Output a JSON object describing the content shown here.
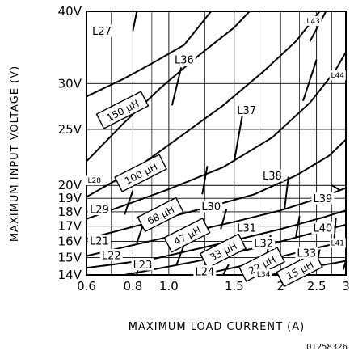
{
  "chart_data": {
    "type": "line",
    "xlabel": "MAXIMUM LOAD CURRENT (A)",
    "ylabel": "MAXIMUM INPUT VOLTAGE (V)",
    "xlim": [
      0.6,
      3
    ],
    "ylim": [
      14,
      40
    ],
    "x_scale": "log",
    "y_scale": "log",
    "grid": true,
    "x_ticks": [
      {
        "value": 0.6,
        "label": "0.6"
      },
      {
        "value": 0.8,
        "label": "0.8"
      },
      {
        "value": 1.0,
        "label": "1.0"
      },
      {
        "value": 1.5,
        "label": "1.5"
      },
      {
        "value": 2,
        "label": "2"
      },
      {
        "value": 2.5,
        "label": "2.5"
      },
      {
        "value": 3,
        "label": "3"
      }
    ],
    "y_ticks": [
      {
        "value": 14,
        "label": "14V"
      },
      {
        "value": 15,
        "label": "15V"
      },
      {
        "value": 16,
        "label": "16V"
      },
      {
        "value": 17,
        "label": "17V"
      },
      {
        "value": 18,
        "label": "18V"
      },
      {
        "value": 19,
        "label": "19V"
      },
      {
        "value": 20,
        "label": "20V"
      },
      {
        "value": 25,
        "label": "25V"
      },
      {
        "value": 30,
        "label": "30V"
      },
      {
        "value": 40,
        "label": "40V"
      }
    ],
    "inductance_labels": [
      {
        "label": "150 μH",
        "x": 0.75,
        "y": 27
      },
      {
        "label": "100 μH",
        "x": 0.84,
        "y": 21
      },
      {
        "label": "68 μH",
        "x": 0.95,
        "y": 17.8
      },
      {
        "label": "47 μH",
        "x": 1.12,
        "y": 16.4
      },
      {
        "label": "33 μH",
        "x": 1.4,
        "y": 15.4
      },
      {
        "label": "22 μH",
        "x": 1.78,
        "y": 14.6
      },
      {
        "label": "15 μH",
        "x": 2.25,
        "y": 14.3
      }
    ],
    "region_labels": [
      {
        "label": "L27",
        "x": 0.66,
        "y": 37
      },
      {
        "label": "L36",
        "x": 1.1,
        "y": 33
      },
      {
        "label": "L43",
        "x": 2.45,
        "y": 38.5,
        "small": true
      },
      {
        "label": "L44",
        "x": 2.85,
        "y": 31,
        "small": true
      },
      {
        "label": "L37",
        "x": 1.62,
        "y": 27
      },
      {
        "label": "L28",
        "x": 0.63,
        "y": 20.4,
        "small": true
      },
      {
        "label": "L38",
        "x": 1.9,
        "y": 20.8
      },
      {
        "label": "L39",
        "x": 2.6,
        "y": 19
      },
      {
        "label": "L29",
        "x": 0.65,
        "y": 18.2
      },
      {
        "label": "L30",
        "x": 1.3,
        "y": 18.4
      },
      {
        "label": "L31",
        "x": 1.62,
        "y": 16.9
      },
      {
        "label": "L40",
        "x": 2.6,
        "y": 16.9
      },
      {
        "label": "L21",
        "x": 0.65,
        "y": 16.05
      },
      {
        "label": "L32",
        "x": 1.8,
        "y": 15.9
      },
      {
        "label": "L41",
        "x": 2.85,
        "y": 15.9,
        "small": true
      },
      {
        "label": "L22",
        "x": 0.7,
        "y": 15.15
      },
      {
        "label": "L33",
        "x": 2.35,
        "y": 15.3
      },
      {
        "label": "L23",
        "x": 0.85,
        "y": 14.6
      },
      {
        "label": "L24",
        "x": 1.25,
        "y": 14.2
      },
      {
        "label": "L34",
        "x": 1.8,
        "y": 14.05,
        "small": true
      }
    ],
    "boundary_lines": [
      {
        "points": [
          [
            0.6,
            22
          ],
          [
            0.75,
            25.5
          ],
          [
            0.95,
            29.5
          ],
          [
            1.2,
            33.5
          ],
          [
            1.5,
            37.5
          ],
          [
            1.65,
            40
          ]
        ]
      },
      {
        "points": [
          [
            0.6,
            19.1
          ],
          [
            0.8,
            21.2
          ],
          [
            1.0,
            23.5
          ],
          [
            1.4,
            27.5
          ],
          [
            1.8,
            31.5
          ],
          [
            2.2,
            35.5
          ],
          [
            2.55,
            40
          ]
        ]
      },
      {
        "points": [
          [
            0.6,
            17.5
          ],
          [
            0.8,
            18.7
          ],
          [
            1.0,
            19.7
          ],
          [
            1.4,
            21.5
          ],
          [
            1.9,
            24.2
          ],
          [
            2.4,
            27.8
          ],
          [
            2.8,
            31.5
          ],
          [
            3,
            34
          ]
        ]
      },
      {
        "points": [
          [
            0.6,
            16.15
          ],
          [
            0.9,
            17.3
          ],
          [
            1.3,
            18.4
          ],
          [
            1.7,
            19.3
          ],
          [
            2.2,
            20.8
          ],
          [
            2.7,
            22.5
          ],
          [
            3,
            24
          ]
        ]
      },
      {
        "points": [
          [
            0.6,
            15.1
          ],
          [
            1.0,
            16.3
          ],
          [
            1.5,
            17.3
          ],
          [
            2.0,
            18.1
          ],
          [
            2.6,
            19.1
          ],
          [
            3,
            19.8
          ]
        ]
      },
      {
        "points": [
          [
            0.6,
            14.4
          ],
          [
            0.9,
            14.9
          ],
          [
            1.4,
            15.9
          ],
          [
            2.0,
            16.8
          ],
          [
            2.6,
            17.6
          ],
          [
            3,
            18.1
          ]
        ]
      },
      {
        "points": [
          [
            0.76,
            14
          ],
          [
            1.2,
            14.8
          ],
          [
            1.8,
            15.7
          ],
          [
            2.4,
            16.5
          ],
          [
            3,
            17.1
          ]
        ]
      },
      {
        "points": [
          [
            1.22,
            14
          ],
          [
            1.8,
            14.8
          ],
          [
            2.4,
            15.5
          ],
          [
            3,
            16
          ]
        ]
      },
      {
        "points": [
          [
            1.88,
            14
          ],
          [
            2.5,
            14.5
          ],
          [
            3,
            14.8
          ]
        ]
      },
      {
        "points": [
          [
            0.6,
            28.5
          ],
          [
            0.75,
            30.5
          ],
          [
            0.9,
            32.5
          ],
          [
            1.1,
            35
          ],
          [
            1.3,
            40
          ]
        ]
      },
      {
        "points": [
          [
            2.4,
            35.5
          ],
          [
            2.65,
            40
          ]
        ]
      },
      {
        "points": [
          [
            2.75,
            20
          ],
          [
            2.9,
            19.6
          ]
        ]
      }
    ],
    "vertical_dividers": [
      {
        "x": 0.8,
        "y": [
          14,
          40
        ]
      },
      {
        "x": 1.75,
        "y": [
          14,
          40
        ]
      },
      {
        "x": 2.4,
        "y": [
          14,
          40
        ]
      },
      {
        "x": 1.0,
        "y": [
          14,
          40
        ]
      },
      {
        "x": 2.0,
        "y": [
          14,
          40
        ]
      },
      {
        "x": 2.2,
        "y": [
          14,
          40
        ]
      }
    ]
  },
  "figure_id": "01258326"
}
